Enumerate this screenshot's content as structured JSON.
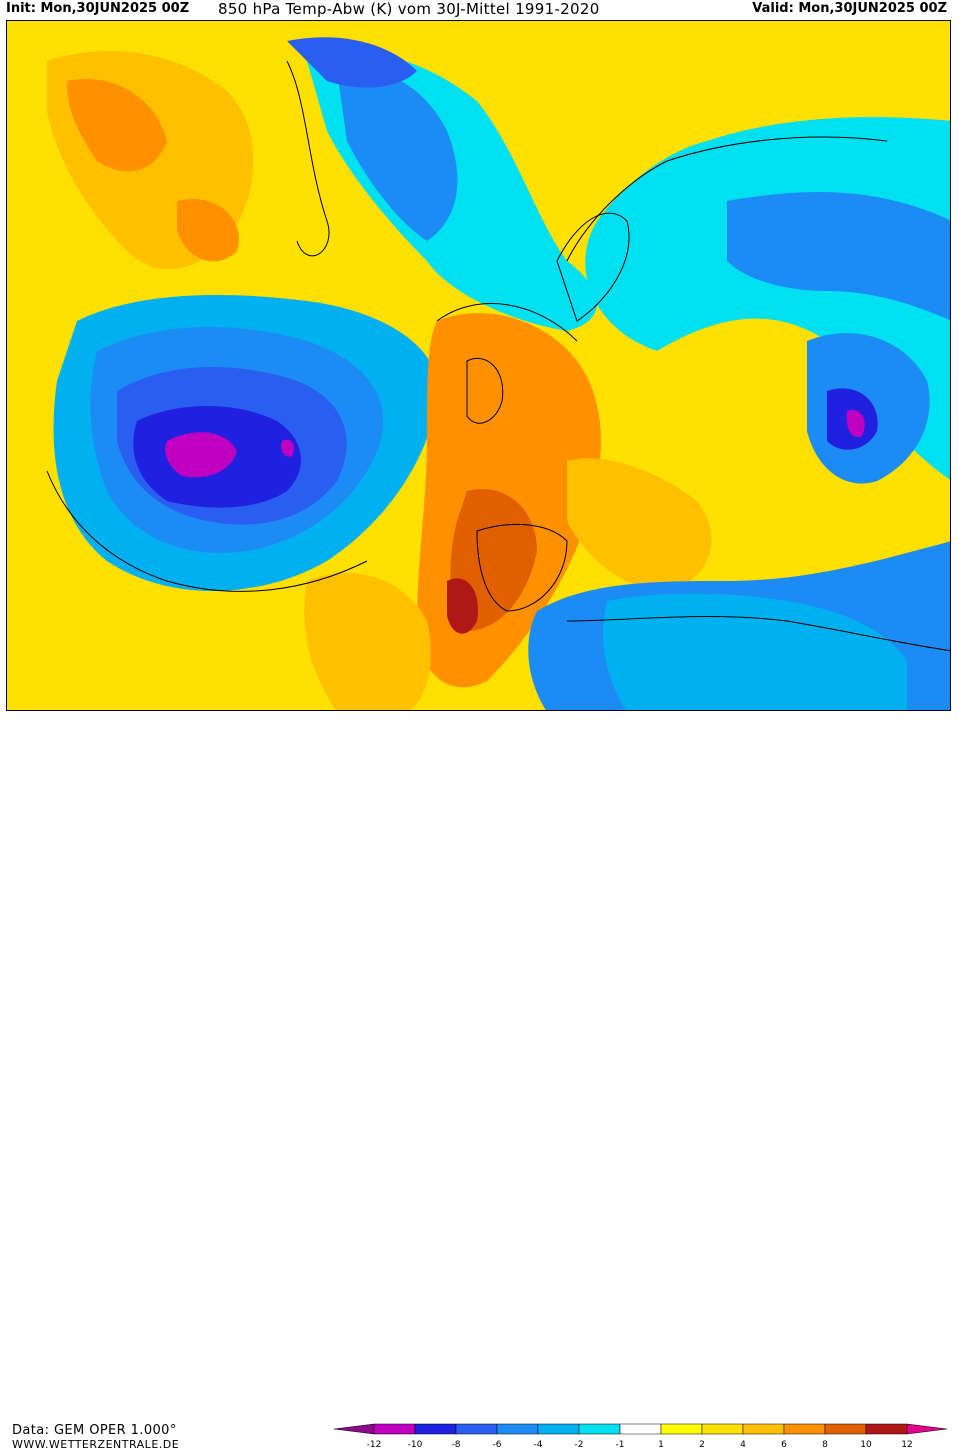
{
  "header": {
    "init_label": "Init:",
    "init_value": "Mon,30JUN2025 00Z",
    "title": "850 hPa Temp-Abw (K) vom 30J-Mittel 1991-2020",
    "valid_label": "Valid:",
    "valid_value": "Mon,30JUN2025 00Z"
  },
  "footer": {
    "data_source": "Data: GEM OPER 1.000°",
    "website": "WWW.WETTERZENTRALE.DE"
  },
  "legend": {
    "ticks": [
      "-12",
      "-10",
      "-8",
      "-6",
      "-4",
      "-2",
      "-1",
      "1",
      "2",
      "4",
      "6",
      "8",
      "10",
      "12"
    ],
    "colors": [
      "#8a0a8a",
      "#c000c0",
      "#2020e0",
      "#2a5ef0",
      "#1c8cf4",
      "#00b0f0",
      "#00e0f0",
      "#ffffff",
      "#ffff00",
      "#ffe000",
      "#ffc000",
      "#ff9000",
      "#e06000",
      "#b01818",
      "#e0008a"
    ]
  }
}
